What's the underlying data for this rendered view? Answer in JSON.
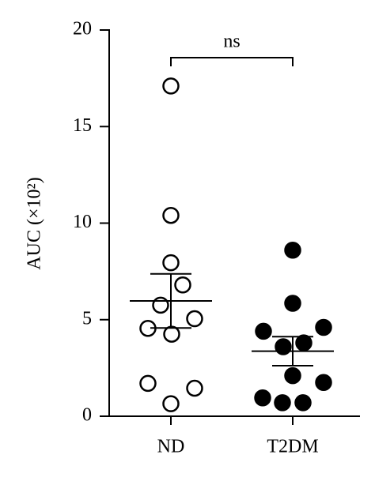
{
  "chart_data": {
    "type": "strip",
    "y_label": "AUC (×10²)",
    "categories": [
      "ND",
      "T2DM"
    ],
    "groups": [
      {
        "values": [
          17.1,
          10.4,
          7.95,
          6.8,
          5.75,
          5.05,
          4.55,
          4.25,
          1.7,
          1.45,
          0.65
        ],
        "mean": 5.97,
        "sem": 1.4,
        "marker_fill": "#ffffff"
      },
      {
        "values": [
          8.6,
          5.85,
          4.4,
          4.6,
          3.6,
          3.8,
          2.1,
          1.75,
          0.95,
          0.7,
          0.7
        ],
        "mean": 3.37,
        "sem": 0.75,
        "marker_fill": "#000000"
      }
    ],
    "annotation": "ns",
    "ylim": [
      0,
      20
    ],
    "yticks": [
      0,
      5,
      10,
      15,
      20
    ]
  }
}
